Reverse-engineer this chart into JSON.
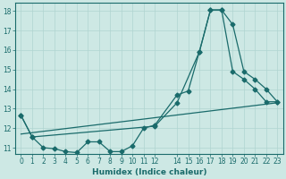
{
  "xlabel": "Humidex (Indice chaleur)",
  "background_color": "#cde8e4",
  "line_color": "#1a6b6b",
  "grid_color": "#b0d4d0",
  "xlim": [
    -0.5,
    23.5
  ],
  "ylim": [
    10.7,
    18.4
  ],
  "xticks": [
    0,
    1,
    2,
    3,
    4,
    5,
    6,
    7,
    8,
    9,
    10,
    11,
    12,
    14,
    15,
    16,
    17,
    18,
    19,
    20,
    21,
    22,
    23
  ],
  "yticks": [
    11,
    12,
    13,
    14,
    15,
    16,
    17,
    18
  ],
  "line1_x": [
    0,
    1,
    2,
    3,
    4,
    5,
    6,
    7,
    8,
    9,
    10,
    11,
    12,
    14,
    15,
    16,
    17,
    18,
    19,
    20,
    21,
    22,
    23
  ],
  "line1_y": [
    12.65,
    11.55,
    11.0,
    10.95,
    10.8,
    10.75,
    11.3,
    11.3,
    10.8,
    10.8,
    11.1,
    12.0,
    12.15,
    13.7,
    13.9,
    15.9,
    18.05,
    18.05,
    17.3,
    14.9,
    14.5,
    14.0,
    13.35
  ],
  "line2_x": [
    0,
    1,
    12,
    14,
    16,
    17,
    18,
    19,
    20,
    21,
    22,
    23
  ],
  "line2_y": [
    12.65,
    11.55,
    12.1,
    13.3,
    15.9,
    18.05,
    18.05,
    14.9,
    14.5,
    14.0,
    13.35,
    13.35
  ],
  "line3_x": [
    0,
    23
  ],
  "line3_y": [
    11.7,
    13.3
  ]
}
